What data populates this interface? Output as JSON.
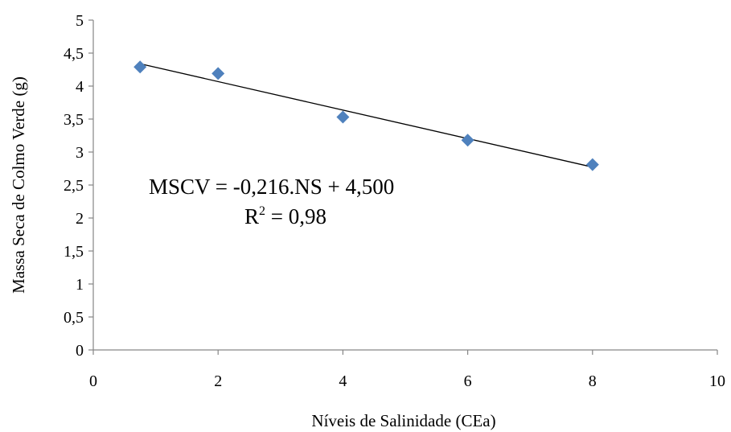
{
  "chart_data": {
    "type": "scatter",
    "xlabel": "Níveis de Salinidade (CEa)",
    "ylabel": "Massa Seca de Colmo Verde (g)",
    "xlim": [
      0,
      10
    ],
    "ylim": [
      0,
      5
    ],
    "x_ticks": [
      "0",
      "2",
      "4",
      "6",
      "8",
      "10"
    ],
    "y_ticks": [
      "0",
      "0,5",
      "1",
      "1,5",
      "2",
      "2,5",
      "3",
      "3,5",
      "4",
      "4,5",
      "5"
    ],
    "x_tick_values": [
      0,
      2,
      4,
      6,
      8,
      10
    ],
    "y_tick_values": [
      0,
      0.5,
      1,
      1.5,
      2,
      2.5,
      3,
      3.5,
      4,
      4.5,
      5
    ],
    "grid": false,
    "legend": "none",
    "series": [
      {
        "marker": "diamond",
        "color": "#4F81BD",
        "x": [
          0.75,
          2,
          4,
          6,
          8
        ],
        "y": [
          4.29,
          4.19,
          3.53,
          3.18,
          2.81
        ]
      }
    ],
    "trendline": {
      "type": "linear",
      "slope": -0.216,
      "intercept": 4.5,
      "x_range": [
        0.75,
        8
      ],
      "color": "#000000"
    },
    "annotations": {
      "equation": "MSCV = -0,216.NS + 4,500",
      "r2_prefix": "R",
      "r2_superscript": "2",
      "r2_suffix": " = 0,98"
    }
  }
}
